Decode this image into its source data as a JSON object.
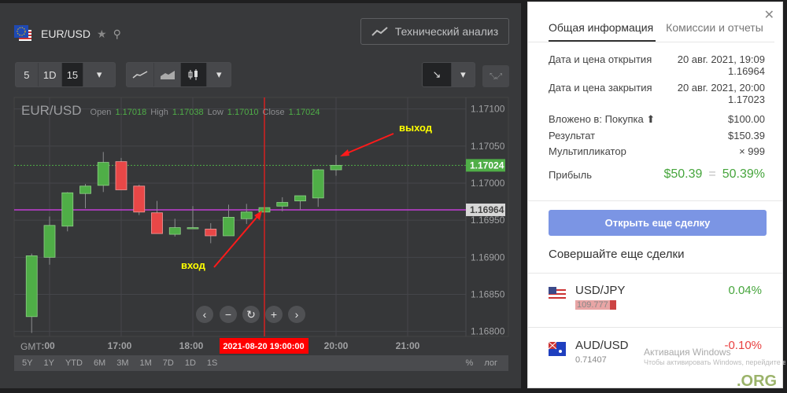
{
  "header": {
    "symbol": "EUR/USD",
    "tech_analysis_label": "Технический анализ"
  },
  "toolbar": {
    "periods": [
      "5",
      "1D",
      "15"
    ],
    "active_period": "15",
    "chart_types": [
      "line",
      "area",
      "candles"
    ],
    "active_chart_type": "candles"
  },
  "chart_legend": {
    "symbol": "EUR/USD",
    "open_label": "Open",
    "open": "1.17018",
    "high_label": "High",
    "high": "1.17038",
    "low_label": "Low",
    "low": "1.17010",
    "close_label": "Close",
    "close": "1.17024"
  },
  "annotations": {
    "exit": "выход",
    "entry": "вход"
  },
  "crosshair_time": "2021-08-20 19:00:00",
  "timezone_label": "GMT",
  "range_buttons": [
    "5Y",
    "1Y",
    "YTD",
    "6M",
    "3M",
    "1M",
    "7D",
    "1D",
    "1S"
  ],
  "scale_buttons": {
    "percent": "%",
    "log": "лог"
  },
  "nav_buttons": [
    "‹",
    "−",
    "↻",
    "+",
    "›"
  ],
  "colors": {
    "up": "#4fae47",
    "down": "#e84747",
    "entry_line": "#c33fd6",
    "close_line": "#4fae47",
    "crosshair": "#ff1a1a",
    "annotation": "#ffff00"
  },
  "chart_data": {
    "type": "candlestick",
    "interval": "15m",
    "ylim": [
      1.16785,
      1.17115
    ],
    "y_ticks": [
      "1.17100",
      "1.17050",
      "1.17000",
      "1.16950",
      "1.16900",
      "1.16850",
      "1.16800"
    ],
    "x_ticks": [
      ":00",
      "17:00",
      "18:00",
      "20:00",
      "21:00"
    ],
    "grid": true,
    "candles": [
      {
        "t": "15:45",
        "o": 1.1682,
        "h": 1.16905,
        "l": 1.16798,
        "c": 1.16902
      },
      {
        "t": "16:00",
        "o": 1.169,
        "h": 1.16955,
        "l": 1.1689,
        "c": 1.16943
      },
      {
        "t": "16:15",
        "o": 1.16942,
        "h": 1.16988,
        "l": 1.16935,
        "c": 1.16987
      },
      {
        "t": "16:30",
        "o": 1.16986,
        "h": 1.16999,
        "l": 1.16966,
        "c": 1.16996
      },
      {
        "t": "16:45",
        "o": 1.16997,
        "h": 1.17042,
        "l": 1.16988,
        "c": 1.17028
      },
      {
        "t": "17:00",
        "o": 1.17029,
        "h": 1.17034,
        "l": 1.16991,
        "c": 1.16991
      },
      {
        "t": "17:15",
        "o": 1.16996,
        "h": 1.16998,
        "l": 1.16957,
        "c": 1.16961
      },
      {
        "t": "17:30",
        "o": 1.1696,
        "h": 1.16976,
        "l": 1.16932,
        "c": 1.16932
      },
      {
        "t": "17:45",
        "o": 1.16931,
        "h": 1.16952,
        "l": 1.16928,
        "c": 1.1694
      },
      {
        "t": "18:00",
        "o": 1.1694,
        "h": 1.16969,
        "l": 1.16939,
        "c": 1.1694
      },
      {
        "t": "18:15",
        "o": 1.16938,
        "h": 1.16946,
        "l": 1.16919,
        "c": 1.16929
      },
      {
        "t": "18:30",
        "o": 1.16929,
        "h": 1.16971,
        "l": 1.16929,
        "c": 1.16954
      },
      {
        "t": "18:45",
        "o": 1.16952,
        "h": 1.16972,
        "l": 1.16945,
        "c": 1.16961
      },
      {
        "t": "19:00",
        "o": 1.16961,
        "h": 1.16973,
        "l": 1.16953,
        "c": 1.16967
      },
      {
        "t": "19:15",
        "o": 1.16969,
        "h": 1.16981,
        "l": 1.16962,
        "c": 1.16974
      },
      {
        "t": "19:30",
        "o": 1.16976,
        "h": 1.16983,
        "l": 1.16964,
        "c": 1.16983
      },
      {
        "t": "19:45",
        "o": 1.1698,
        "h": 1.17019,
        "l": 1.16968,
        "c": 1.17018
      },
      {
        "t": "20:00",
        "o": 1.17018,
        "h": 1.17038,
        "l": 1.1701,
        "c": 1.17024
      }
    ],
    "price_lines": [
      {
        "label": "1.17024",
        "value": 1.17024,
        "style": "dotted"
      },
      {
        "label": "1.16964",
        "value": 1.16964,
        "style": "solid"
      }
    ]
  },
  "panel": {
    "tabs": [
      "Общая информация",
      "Комиссии и отчеты"
    ],
    "open_label": "Дата и цена открытия",
    "open_date": "20 авг. 2021, 19:09",
    "open_price": "1.16964",
    "close_label": "Дата и цена закрытия",
    "close_date": "20 авг. 2021, 20:00",
    "close_price": "1.17023",
    "invested_label": "Вложено в: Покупка ⬆",
    "invested": "$100.00",
    "result_label": "Результат",
    "result": "$150.39",
    "multiplier_label": "Мультипликатор",
    "multiplier": "× 999",
    "profit_label": "Прибыль",
    "profit": "$50.39",
    "profit_eq": "=",
    "profit_pct": "50.39%",
    "open_more": "Открыть еще сделку",
    "more_title": "Совершайте еще сделки",
    "assets": [
      {
        "name": "USD/JPY",
        "price": "109.777",
        "change": "0.04%",
        "color": "#46a53c"
      },
      {
        "name": "AUD/USD",
        "price": "0.71407",
        "change": "-0.10%",
        "color": "#e84040"
      }
    ]
  },
  "watermark": {
    "line1": "Активация Windows",
    "line2": "Чтобы активировать Windows, перейдите в",
    "logo": ".ORG"
  }
}
